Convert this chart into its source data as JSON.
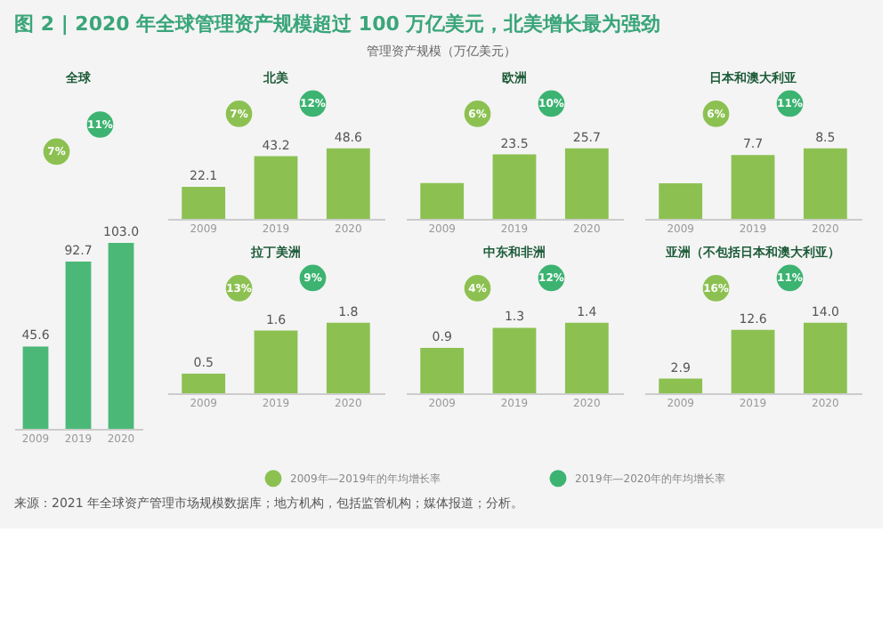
{
  "chart_data": [
    {
      "type": "other",
      "title": "图 2 | 2020 年全球管理资产规模超过 100 万亿美元，北美增长最为强劲",
      "subtitle": "管理资产规模（万亿美元）",
      "colors": [
        "#8cc152",
        "#3cb371"
      ],
      "annotations": [
        "2009年—2019年的年均增长率",
        "2019年—2020年的年均增长率",
        "来源：2021 年全球资产管理市场规模数据库；地方机构，包括监管机构；媒体报道；分析。"
      ]
    },
    {
      "type": "bar",
      "title": "全球",
      "categories": [
        "2009",
        "2019",
        "2020"
      ],
      "values": [
        45.6,
        92.7,
        103.0
      ],
      "value_labels": [
        "45.6",
        "92.7",
        "103.0"
      ],
      "color": "#4cb878",
      "annotations": [
        "7%",
        "11%"
      ]
    },
    {
      "type": "bar",
      "title": "北美",
      "categories": [
        "2009",
        "2019",
        "2020"
      ],
      "values": [
        22.1,
        43.2,
        48.6
      ],
      "value_labels": [
        "22.1",
        "43.2",
        "48.6"
      ],
      "color": "#8cc152",
      "annotations": [
        "7%",
        "12%"
      ]
    },
    {
      "type": "bar",
      "title": "欧洲",
      "categories": [
        "2009",
        "2019",
        "2020"
      ],
      "values": [
        13.1,
        23.5,
        25.7
      ],
      "value_labels": [
        null,
        "23.5",
        "25.7"
      ],
      "color": "#8cc152",
      "annotations": [
        "6%",
        "10%"
      ]
    },
    {
      "type": "bar",
      "title": "日本和澳大利亚",
      "categories": [
        "2009",
        "2019",
        "2020"
      ],
      "values": [
        4.3,
        7.7,
        8.5
      ],
      "value_labels": [
        null,
        "7.7",
        "8.5"
      ],
      "color": "#8cc152",
      "annotations": [
        "6%",
        "11%"
      ]
    },
    {
      "type": "bar",
      "title": "拉丁美洲",
      "categories": [
        "2009",
        "2019",
        "2020"
      ],
      "values": [
        0.5,
        1.6,
        1.8
      ],
      "value_labels": [
        "0.5",
        "1.6",
        "1.8"
      ],
      "color": "#8cc152",
      "annotations": [
        "13%",
        "9%"
      ]
    },
    {
      "type": "bar",
      "title": "中东和非洲",
      "categories": [
        "2009",
        "2019",
        "2020"
      ],
      "values": [
        0.9,
        1.3,
        1.4
      ],
      "value_labels": [
        "0.9",
        "1.3",
        "1.4"
      ],
      "color": "#8cc152",
      "annotations": [
        "4%",
        "12%"
      ]
    },
    {
      "type": "bar",
      "title": "亚洲（不包括日本和澳大利亚）",
      "categories": [
        "2009",
        "2019",
        "2020"
      ],
      "values": [
        2.9,
        12.6,
        14.0
      ],
      "value_labels": [
        "2.9",
        "12.6",
        "14.0"
      ],
      "color": "#8cc152",
      "annotations": [
        "16%",
        "11%"
      ]
    }
  ]
}
